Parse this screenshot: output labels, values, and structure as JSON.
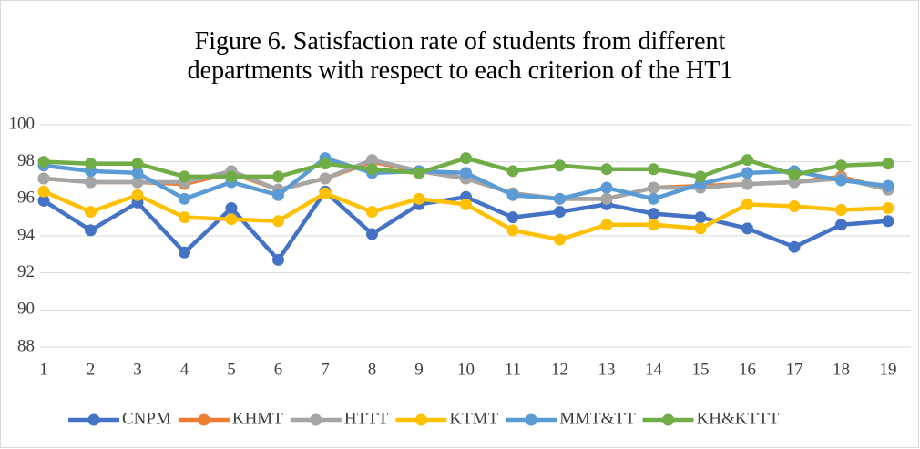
{
  "chart_data": {
    "type": "line",
    "title": "Figure 6. Satisfaction rate of students from different departments with respect to each criterion of the HT1",
    "categories": [
      "1",
      "2",
      "3",
      "4",
      "5",
      "6",
      "7",
      "8",
      "9",
      "10",
      "11",
      "12",
      "13",
      "14",
      "15",
      "16",
      "17",
      "18",
      "19"
    ],
    "series": [
      {
        "name": "CNPM",
        "color": "#4472c4",
        "values": [
          95.9,
          94.3,
          95.8,
          93.1,
          95.5,
          92.7,
          96.4,
          94.1,
          95.7,
          96.1,
          95.0,
          95.3,
          95.7,
          95.2,
          95.0,
          94.4,
          93.4,
          94.6,
          94.8
        ]
      },
      {
        "name": "KHMT",
        "color": "#ed7d31",
        "values": [
          97.1,
          96.9,
          96.9,
          96.8,
          97.4,
          96.5,
          97.1,
          98.0,
          97.5,
          97.1,
          96.3,
          96.0,
          96.0,
          96.6,
          96.7,
          96.8,
          96.9,
          97.2,
          96.5
        ]
      },
      {
        "name": "HTTT",
        "color": "#a5a5a5",
        "values": [
          97.1,
          96.9,
          96.9,
          96.9,
          97.5,
          96.5,
          97.1,
          98.1,
          97.5,
          97.1,
          96.3,
          96.0,
          96.0,
          96.6,
          96.6,
          96.8,
          96.9,
          97.1,
          96.5
        ]
      },
      {
        "name": "KTMT",
        "color": "#ffc000",
        "values": [
          96.4,
          95.3,
          96.2,
          95.0,
          94.9,
          94.8,
          96.3,
          95.3,
          96.0,
          95.7,
          94.3,
          93.8,
          94.6,
          94.6,
          94.4,
          95.7,
          95.6,
          95.4,
          95.5
        ]
      },
      {
        "name": "MMT&TT",
        "color": "#5b9bd5",
        "values": [
          97.8,
          97.5,
          97.4,
          96.0,
          96.9,
          96.2,
          98.2,
          97.4,
          97.5,
          97.4,
          96.2,
          96.0,
          96.6,
          96.0,
          96.8,
          97.4,
          97.5,
          97.0,
          96.7
        ]
      },
      {
        "name": "KH&KTTT",
        "color": "#70ad47",
        "values": [
          98.0,
          97.9,
          97.9,
          97.2,
          97.2,
          97.2,
          97.9,
          97.6,
          97.4,
          98.2,
          97.5,
          97.8,
          97.6,
          97.6,
          97.2,
          98.1,
          97.3,
          97.8,
          97.9
        ]
      }
    ],
    "ylim": [
      88,
      100
    ],
    "yticks": [
      88,
      90,
      92,
      94,
      96,
      98,
      100
    ],
    "grid": true,
    "legend": "bottom"
  }
}
